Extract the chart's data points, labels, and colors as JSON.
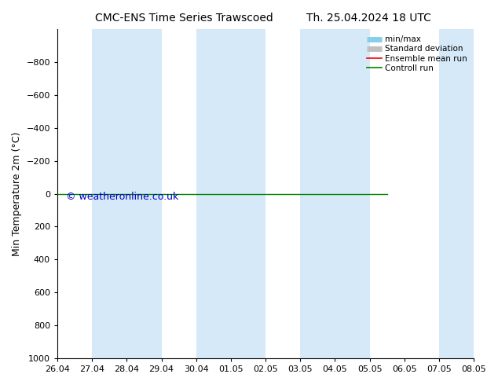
{
  "title_left": "CMC-ENS Time Series Trawscoed",
  "title_right": "Th. 25.04.2024 18 UTC",
  "ylabel": "Min Temperature 2m (°C)",
  "ylim_bottom": 1000,
  "ylim_top": -1000,
  "yticks": [
    -800,
    -600,
    -400,
    -200,
    0,
    200,
    400,
    600,
    800,
    1000
  ],
  "xlim_start": 0,
  "xlim_end": 12,
  "xtick_labels": [
    "26.04",
    "27.04",
    "28.04",
    "29.04",
    "30.04",
    "01.05",
    "02.05",
    "03.05",
    "04.05",
    "05.05",
    "06.05",
    "07.05",
    "08.05"
  ],
  "shade_bands": [
    [
      1,
      3
    ],
    [
      4,
      6
    ],
    [
      7,
      9
    ],
    [
      11,
      12
    ]
  ],
  "shade_color": "#d6e9f8",
  "control_run_y": 0,
  "control_run_color": "#008000",
  "control_run_xend": 9.5,
  "ensemble_mean_color": "#ff0000",
  "minmax_color": "#87ceeb",
  "stddev_color": "#c0c0c0",
  "watermark": "© weatheronline.co.uk",
  "watermark_color": "#0000cc",
  "background_color": "#ffffff",
  "legend_labels": [
    "min/max",
    "Standard deviation",
    "Ensemble mean run",
    "Controll run"
  ],
  "legend_colors": [
    "#87ceeb",
    "#c0c0c0",
    "#ff0000",
    "#008000"
  ],
  "title_fontsize": 10,
  "tick_fontsize": 8,
  "ylabel_fontsize": 9
}
